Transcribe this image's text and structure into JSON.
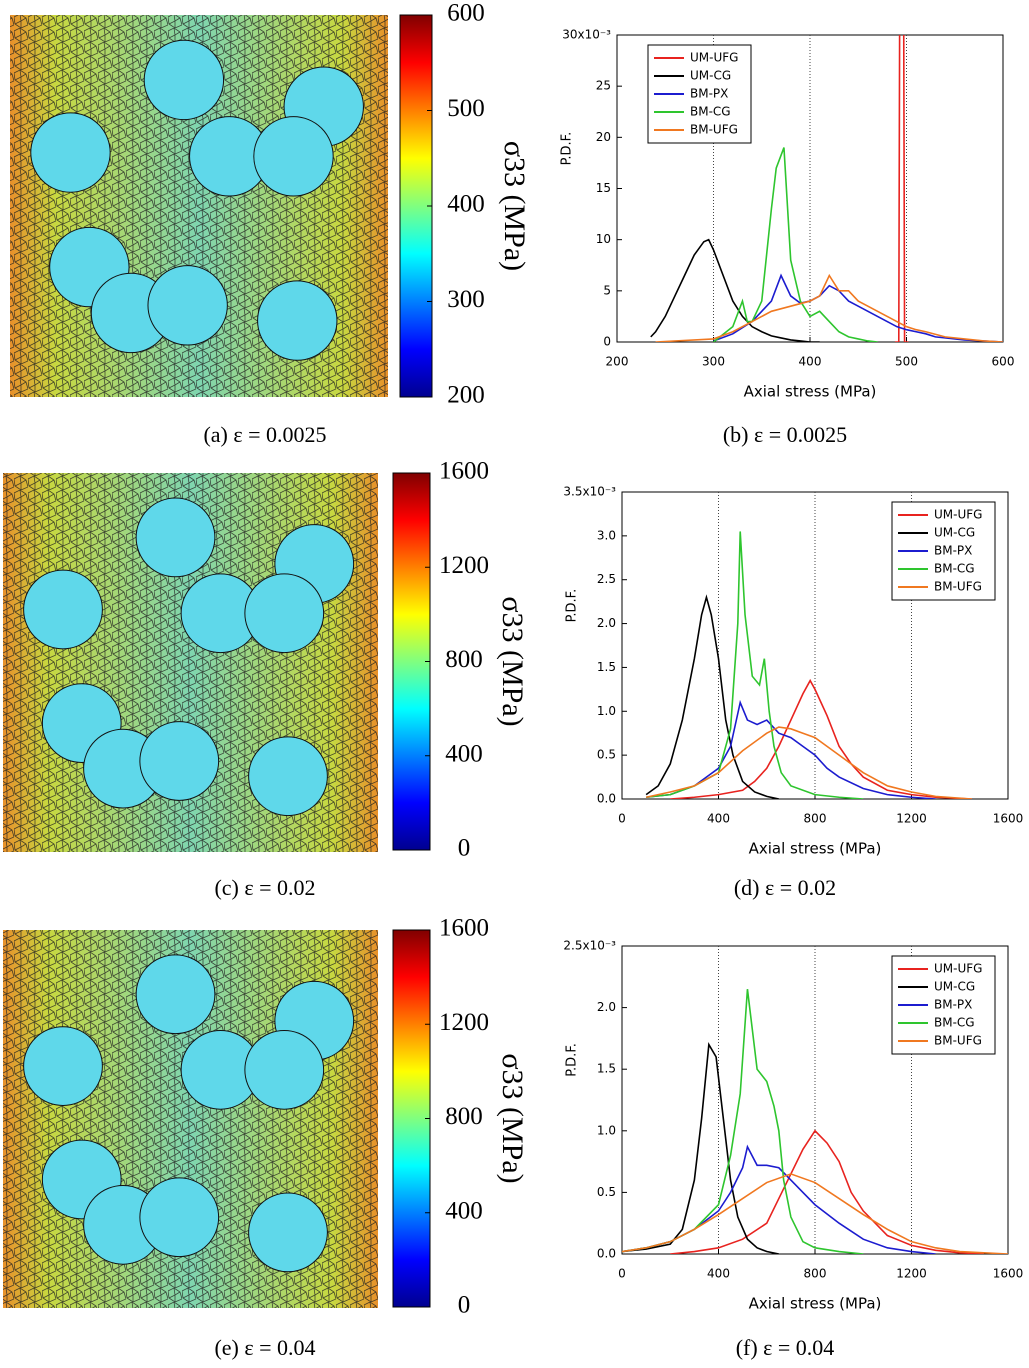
{
  "fields": [
    {
      "caption": "(a)  ε = 0.0025",
      "colorbar": {
        "label": "σ33 (MPa)",
        "lim": [
          200,
          600
        ],
        "ticks": [
          200,
          300,
          400,
          500,
          600
        ]
      }
    },
    {
      "caption": "(c)  ε = 0.02",
      "colorbar": {
        "label": "σ33 (MPa)",
        "lim": [
          0,
          1600
        ],
        "ticks": [
          0,
          400,
          800,
          1200,
          1600
        ]
      }
    },
    {
      "caption": "(e)  ε = 0.04",
      "colorbar": {
        "label": "σ33 (MPa)",
        "lim": [
          0,
          1600
        ],
        "ticks": [
          0,
          400,
          800,
          1200,
          1600
        ]
      }
    }
  ],
  "chart_data": [
    {
      "type": "line",
      "caption": "(b)  ε = 0.0025",
      "xlabel": "Axial stress (MPa)",
      "ylabel": "P.D.F.",
      "legend": "upper left",
      "grid": "x",
      "xlim": [
        200,
        600
      ],
      "xticks": [
        200,
        300,
        400,
        500,
        600
      ],
      "xgrid": [
        300,
        400,
        500
      ],
      "ylim": [
        0,
        30
      ],
      "yticks": [
        0,
        5,
        10,
        15,
        20,
        25,
        {
          "value": 30,
          "label": "30x10⁻³"
        }
      ],
      "series": [
        {
          "name": "UM-UFG",
          "color": "#e8231f",
          "x": [
            488,
            492,
            493,
            497,
            498,
            502
          ],
          "values": [
            0,
            0,
            35,
            35,
            0,
            0
          ]
        },
        {
          "name": "UM-CG",
          "color": "#000000",
          "x": [
            235,
            240,
            250,
            260,
            270,
            280,
            290,
            295,
            300,
            310,
            320,
            330,
            340,
            350,
            360,
            370,
            380,
            390,
            400,
            410
          ],
          "values": [
            0.5,
            1,
            2.5,
            4.5,
            6.5,
            8.5,
            9.8,
            10,
            9,
            6.5,
            4,
            2.5,
            1.5,
            1,
            0.6,
            0.4,
            0.2,
            0.1,
            0,
            0
          ]
        },
        {
          "name": "BM-PX",
          "color": "#1c1ccf",
          "x": [
            300,
            320,
            340,
            350,
            360,
            370,
            380,
            390,
            400,
            410,
            420,
            430,
            440,
            450,
            460,
            470,
            480,
            490,
            500,
            510,
            520,
            530,
            560,
            600
          ],
          "values": [
            0.1,
            0.8,
            2,
            3,
            4,
            6.5,
            4.5,
            3.8,
            4,
            4.5,
            5.5,
            5,
            4,
            3.5,
            3,
            2.5,
            2,
            1.5,
            1.2,
            1,
            0.8,
            0.5,
            0.2,
            0
          ]
        },
        {
          "name": "BM-CG",
          "color": "#2ec52e",
          "x": [
            300,
            320,
            330,
            335,
            340,
            350,
            360,
            365,
            373,
            380,
            390,
            400,
            410,
            420,
            430,
            440,
            450,
            460,
            470
          ],
          "values": [
            0,
            1.5,
            4,
            2,
            2,
            4,
            13,
            17,
            19,
            8,
            4,
            2.5,
            3,
            2,
            1,
            0.5,
            0.3,
            0.1,
            0
          ]
        },
        {
          "name": "BM-UFG",
          "color": "#f07820",
          "x": [
            240,
            300,
            320,
            340,
            360,
            380,
            400,
            410,
            420,
            430,
            440,
            450,
            460,
            470,
            480,
            490,
            500,
            510,
            520,
            540,
            560,
            580,
            600
          ],
          "values": [
            0,
            0.3,
            1,
            2,
            3,
            3.5,
            4,
            4.5,
            6.5,
            5,
            5,
            4,
            3.5,
            3,
            2.5,
            2,
            1.5,
            1.2,
            1,
            0.5,
            0.3,
            0.1,
            0
          ]
        }
      ]
    },
    {
      "type": "line",
      "caption": "(d)  ε = 0.02",
      "xlabel": "Axial stress (MPa)",
      "ylabel": "P.D.F.",
      "legend": "upper right",
      "grid": "x",
      "xlim": [
        0,
        1600
      ],
      "xticks": [
        0,
        400,
        800,
        1200,
        1600
      ],
      "xgrid": [
        400,
        800,
        1200
      ],
      "ylim": [
        0,
        3.5
      ],
      "yticks": [
        {
          "value": 0,
          "label": "0.0"
        },
        0.5,
        {
          "value": 1,
          "label": "1.0"
        },
        1.5,
        {
          "value": 2,
          "label": "2.0"
        },
        2.5,
        {
          "value": 3,
          "label": "3.0"
        },
        {
          "value": 3.5,
          "label": "3.5x10⁻³"
        }
      ],
      "series": [
        {
          "name": "UM-UFG",
          "color": "#e8231f",
          "x": [
            200,
            300,
            400,
            500,
            550,
            600,
            650,
            700,
            750,
            780,
            800,
            850,
            900,
            950,
            1000,
            1100,
            1200,
            1300,
            1450
          ],
          "values": [
            0,
            0.02,
            0.05,
            0.1,
            0.2,
            0.35,
            0.6,
            0.9,
            1.2,
            1.35,
            1.25,
            0.95,
            0.6,
            0.4,
            0.25,
            0.1,
            0.05,
            0.02,
            0
          ]
        },
        {
          "name": "UM-CG",
          "color": "#000000",
          "x": [
            100,
            150,
            200,
            250,
            300,
            330,
            350,
            370,
            400,
            430,
            460,
            500,
            550,
            600,
            650
          ],
          "values": [
            0.05,
            0.15,
            0.4,
            0.9,
            1.6,
            2.1,
            2.3,
            2.1,
            1.6,
            0.9,
            0.5,
            0.2,
            0.08,
            0.03,
            0
          ]
        },
        {
          "name": "BM-PX",
          "color": "#1c1ccf",
          "x": [
            100,
            200,
            300,
            400,
            450,
            490,
            520,
            560,
            600,
            650,
            700,
            750,
            800,
            850,
            900,
            1000,
            1100,
            1200,
            1300
          ],
          "values": [
            0.02,
            0.05,
            0.15,
            0.35,
            0.6,
            1.1,
            0.9,
            0.85,
            0.9,
            0.75,
            0.7,
            0.6,
            0.5,
            0.35,
            0.25,
            0.12,
            0.05,
            0.02,
            0
          ]
        },
        {
          "name": "BM-CG",
          "color": "#2ec52e",
          "x": [
            100,
            200,
            300,
            400,
            450,
            480,
            490,
            510,
            540,
            570,
            590,
            610,
            630,
            660,
            700,
            800,
            900,
            1000
          ],
          "values": [
            0.02,
            0.05,
            0.15,
            0.3,
            0.8,
            2,
            3.05,
            2.1,
            1.4,
            1.3,
            1.6,
            1,
            0.6,
            0.3,
            0.15,
            0.05,
            0.02,
            0
          ]
        },
        {
          "name": "BM-UFG",
          "color": "#f07820",
          "x": [
            100,
            200,
            300,
            400,
            500,
            600,
            650,
            700,
            750,
            800,
            850,
            900,
            1000,
            1100,
            1200,
            1300,
            1400,
            1450
          ],
          "values": [
            0.02,
            0.08,
            0.15,
            0.3,
            0.55,
            0.75,
            0.82,
            0.8,
            0.75,
            0.7,
            0.6,
            0.5,
            0.3,
            0.15,
            0.08,
            0.03,
            0.01,
            0
          ]
        }
      ]
    },
    {
      "type": "line",
      "caption": "(f)  ε = 0.04",
      "xlabel": "Axial stress (MPa)",
      "ylabel": "P.D.F.",
      "legend": "upper right",
      "grid": "x",
      "xlim": [
        0,
        1600
      ],
      "xticks": [
        0,
        400,
        800,
        1200,
        1600
      ],
      "xgrid": [
        400,
        800,
        1200
      ],
      "ylim": [
        0,
        2.5
      ],
      "yticks": [
        {
          "value": 0,
          "label": "0.0"
        },
        0.5,
        {
          "value": 1,
          "label": "1.0"
        },
        1.5,
        {
          "value": 2,
          "label": "2.0"
        },
        {
          "value": 2.5,
          "label": "2.5x10⁻³"
        }
      ],
      "series": [
        {
          "name": "UM-UFG",
          "color": "#e8231f",
          "x": [
            200,
            300,
            400,
            500,
            600,
            650,
            700,
            750,
            800,
            850,
            900,
            950,
            1000,
            1100,
            1200,
            1300,
            1400,
            1500
          ],
          "values": [
            0,
            0.02,
            0.05,
            0.12,
            0.25,
            0.45,
            0.65,
            0.85,
            1,
            0.9,
            0.75,
            0.5,
            0.35,
            0.15,
            0.07,
            0.03,
            0.01,
            0
          ]
        },
        {
          "name": "UM-CG",
          "color": "#000000",
          "x": [
            0,
            100,
            200,
            250,
            300,
            330,
            360,
            390,
            420,
            450,
            480,
            520,
            560,
            600,
            650
          ],
          "values": [
            0.02,
            0.04,
            0.08,
            0.2,
            0.6,
            1.1,
            1.7,
            1.6,
            1.1,
            0.6,
            0.3,
            0.12,
            0.05,
            0.02,
            0
          ]
        },
        {
          "name": "BM-PX",
          "color": "#1c1ccf",
          "x": [
            0,
            100,
            200,
            300,
            400,
            450,
            500,
            520,
            560,
            600,
            650,
            700,
            750,
            800,
            900,
            1000,
            1100,
            1200,
            1300
          ],
          "values": [
            0.02,
            0.05,
            0.1,
            0.2,
            0.35,
            0.5,
            0.7,
            0.87,
            0.72,
            0.72,
            0.7,
            0.6,
            0.5,
            0.4,
            0.25,
            0.12,
            0.05,
            0.02,
            0
          ]
        },
        {
          "name": "BM-CG",
          "color": "#2ec52e",
          "x": [
            0,
            100,
            200,
            300,
            400,
            450,
            490,
            520,
            560,
            600,
            630,
            650,
            670,
            700,
            750,
            800,
            900,
            1000
          ],
          "values": [
            0.02,
            0.05,
            0.1,
            0.2,
            0.4,
            0.8,
            1.3,
            2.15,
            1.5,
            1.4,
            1.2,
            1,
            0.6,
            0.3,
            0.1,
            0.05,
            0.02,
            0
          ]
        },
        {
          "name": "BM-UFG",
          "color": "#f07820",
          "x": [
            0,
            100,
            200,
            300,
            400,
            500,
            600,
            700,
            800,
            900,
            1000,
            1100,
            1200,
            1300,
            1400,
            1600
          ],
          "values": [
            0.02,
            0.05,
            0.1,
            0.2,
            0.32,
            0.45,
            0.58,
            0.65,
            0.58,
            0.45,
            0.32,
            0.2,
            0.1,
            0.05,
            0.02,
            0
          ]
        }
      ]
    }
  ]
}
